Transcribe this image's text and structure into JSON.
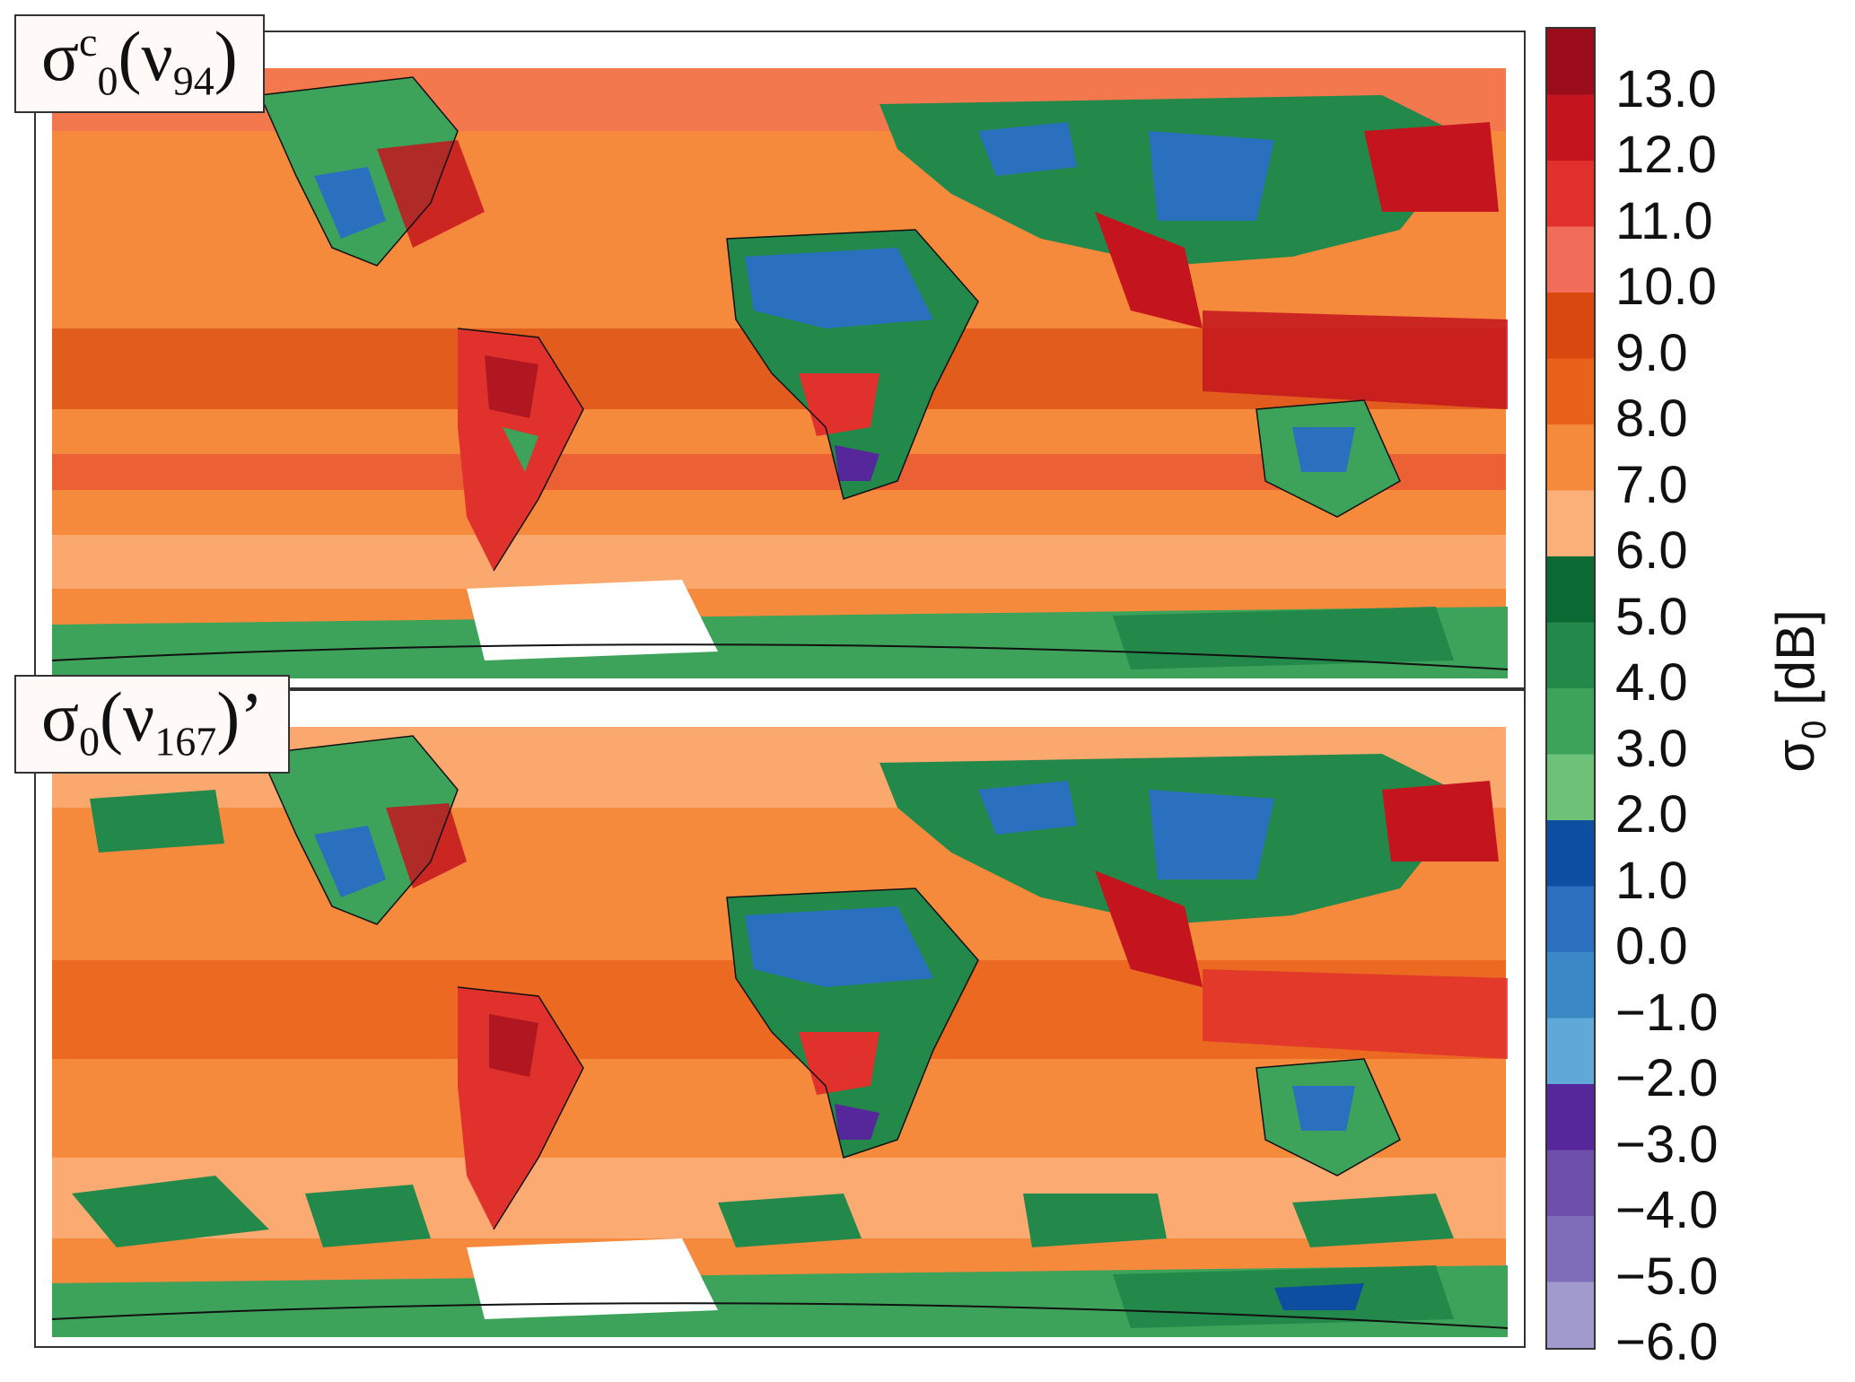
{
  "panels": [
    {
      "label_main": "σ",
      "label_sup": "c",
      "label_sub": "0",
      "label_open": "(ν",
      "label_sub2": "94",
      "label_close": ")"
    },
    {
      "label_main": "σ",
      "label_sup": "",
      "label_sub": "0",
      "label_open": "(ν",
      "label_sub2": "167",
      "label_close": ")’"
    }
  ],
  "colorbar": {
    "label_main": "σ",
    "label_sub": "0",
    "label_unit": " [dB]",
    "ticks": [
      "13.0",
      "12.0",
      "11.0",
      "10.0",
      "9.0",
      "8.0",
      "7.0",
      "6.0",
      "5.0",
      "4.0",
      "3.0",
      "2.0",
      "1.0",
      "0.0",
      "−1.0",
      "−2.0",
      "−3.0",
      "−4.0",
      "−5.0",
      "−6.0"
    ],
    "colors": [
      "#9b0d1b",
      "#c4151f",
      "#e0312d",
      "#f26c5a",
      "#d9480f",
      "#e8621a",
      "#f5893c",
      "#fbb07a",
      "#0b6a33",
      "#22894a",
      "#3da35a",
      "#6dc277",
      "#0d4ea0",
      "#2a70bf",
      "#3b88c6",
      "#5fa8d8",
      "#56279a",
      "#6e4faa",
      "#7f6db9",
      "#a19acc"
    ]
  }
}
